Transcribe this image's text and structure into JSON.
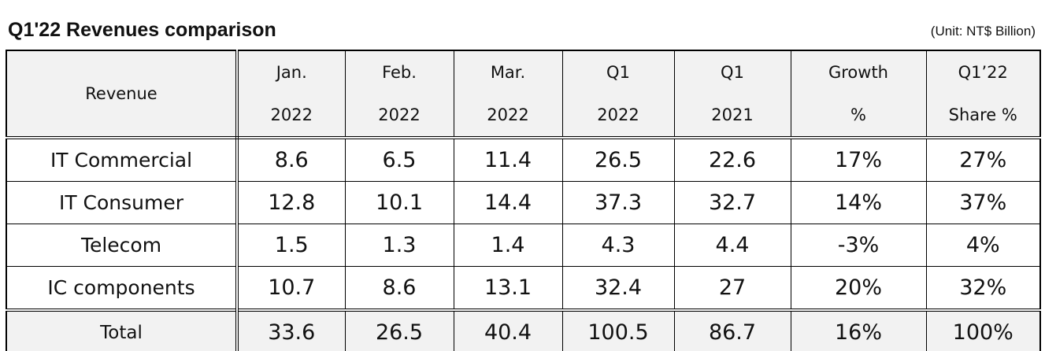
{
  "title": "Q1'22 Revenues comparison",
  "unit": "(Unit: NT$ Billion)",
  "table": {
    "header": [
      [
        "Revenue"
      ],
      [
        "Jan.",
        "2022"
      ],
      [
        "Feb.",
        "2022"
      ],
      [
        "Mar.",
        "2022"
      ],
      [
        "Q1",
        "2022"
      ],
      [
        "Q1",
        "2021"
      ],
      [
        "Growth",
        "%"
      ],
      [
        "Q1’22",
        "Share %"
      ]
    ],
    "rows": [
      [
        "IT Commercial",
        "8.6",
        "6.5",
        "11.4",
        "26.5",
        "22.6",
        "17%",
        "27%"
      ],
      [
        "IT Consumer",
        "12.8",
        "10.1",
        "14.4",
        "37.3",
        "32.7",
        "14%",
        "37%"
      ],
      [
        "Telecom",
        "1.5",
        "1.3",
        "1.4",
        "4.3",
        "4.4",
        "-3%",
        "4%"
      ],
      [
        "IC components",
        "10.7",
        "8.6",
        "13.1",
        "32.4",
        "27",
        "20%",
        "32%"
      ]
    ],
    "total": [
      "Total",
      "33.6",
      "26.5",
      "40.4",
      "100.5",
      "86.7",
      "16%",
      "100%"
    ]
  }
}
